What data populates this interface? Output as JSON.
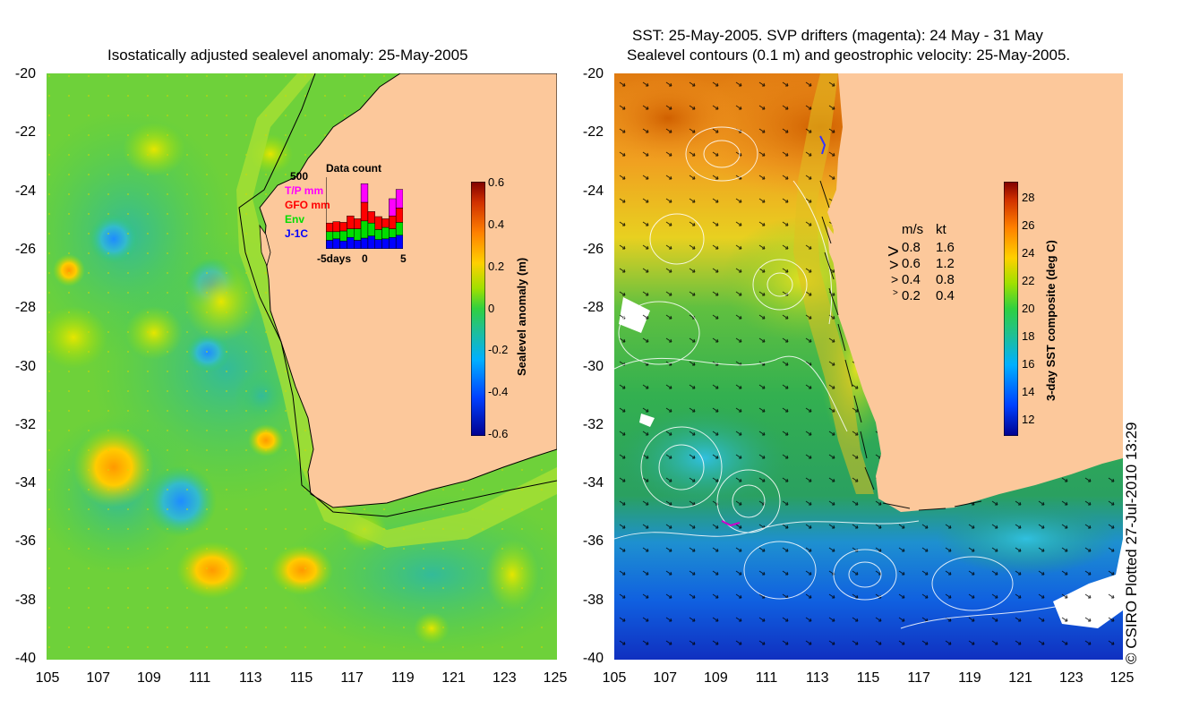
{
  "left_panel": {
    "title": "Isostatically adjusted sealevel anomaly: 25-May-2005",
    "colorbar": {
      "label": "Sealevel anomaly (m)",
      "ticks": [
        "0.6",
        "0.4",
        "0.2",
        "0",
        "-0.2",
        "-0.4",
        "-0.6"
      ],
      "range": [
        -0.6,
        0.6
      ]
    },
    "inset": {
      "title": "Data count",
      "y_max_label": "500",
      "series_labels": [
        "T/P mm",
        "GFO mm",
        "Env",
        "J-1C"
      ],
      "series_colors": [
        "#ff00ff",
        "#ff0000",
        "#00dd00",
        "#0000ff"
      ],
      "x_labels": [
        "-5days",
        "0",
        "5"
      ],
      "chart_data": {
        "type": "bar",
        "stacked": true,
        "categories": [
          -5,
          -4,
          -3,
          -2,
          -1,
          0,
          1,
          2,
          3,
          4,
          5
        ],
        "series": [
          {
            "name": "J-1C",
            "values": [
              60,
              70,
              55,
              80,
              60,
              75,
              90,
              65,
              70,
              80,
              95
            ]
          },
          {
            "name": "Env",
            "values": [
              60,
              50,
              70,
              60,
              80,
              120,
              90,
              70,
              80,
              60,
              90
            ]
          },
          {
            "name": "GFO mm",
            "values": [
              60,
              70,
              60,
              90,
              70,
              130,
              80,
              90,
              60,
              90,
              100
            ]
          },
          {
            "name": "T/P mm",
            "values": [
              0,
              0,
              0,
              0,
              0,
              130,
              0,
              0,
              0,
              120,
              130
            ]
          }
        ],
        "ylim": [
          0,
          500
        ]
      }
    }
  },
  "right_panel": {
    "title_line1": "SST: 25-May-2005. SVP drifters (magenta): 24 May - 31 May",
    "title_line2": "Sealevel contours (0.1 m) and geostrophic velocity: 25-May-2005.",
    "colorbar": {
      "label": "3-day SST composite (deg C)",
      "ticks": [
        "28",
        "26",
        "24",
        "22",
        "20",
        "18",
        "16",
        "14",
        "12"
      ],
      "range": [
        11,
        29
      ]
    },
    "speed_legend": {
      "header_ms": "m/s",
      "header_kt": "kt",
      "rows": [
        {
          "ms": "0.8",
          "kt": "1.6"
        },
        {
          "ms": "0.6",
          "kt": "1.2"
        },
        {
          "ms": "0.4",
          "kt": "0.8"
        },
        {
          "ms": "0.2",
          "kt": "0.4"
        }
      ]
    }
  },
  "axes": {
    "y_ticks": [
      "-20",
      "-22",
      "-24",
      "-26",
      "-28",
      "-30",
      "-32",
      "-34",
      "-36",
      "-38",
      "-40"
    ],
    "x_ticks": [
      "105",
      "107",
      "109",
      "111",
      "113",
      "115",
      "117",
      "119",
      "121",
      "123",
      "125"
    ],
    "lon_range": [
      105,
      125
    ],
    "lat_range": [
      -40,
      -20
    ]
  },
  "land_color": "#fcc89b",
  "copyright": "© CSIRO Plotted 27-Jul-2010 13:29"
}
